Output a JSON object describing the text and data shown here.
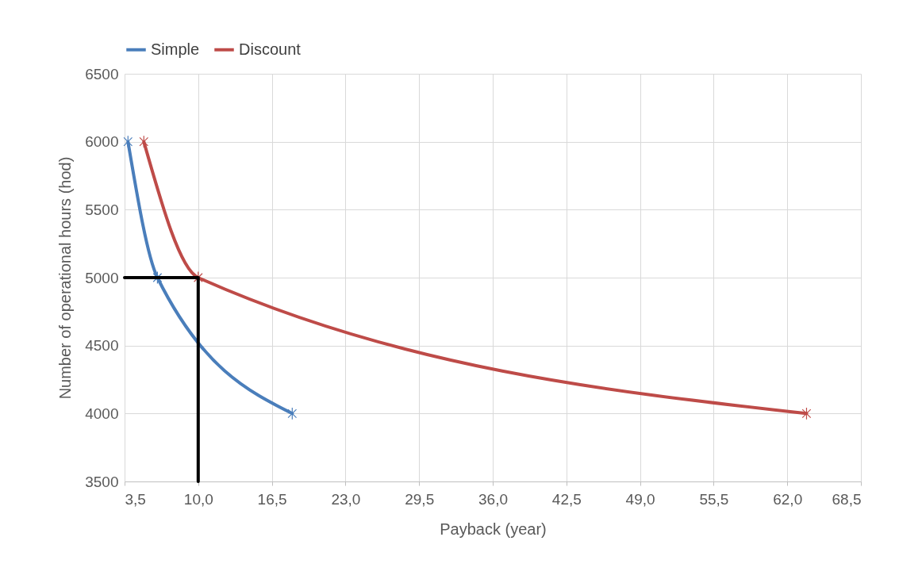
{
  "chart_data": {
    "type": "line",
    "xlabel": "Payback (year)",
    "ylabel": "Number of operational hours (hod)",
    "series": [
      {
        "name": "Simple",
        "color": "#4a7ebb",
        "x": [
          3.8,
          6.4,
          18.3
        ],
        "values": [
          6000,
          5000,
          4000
        ]
      },
      {
        "name": "Discount",
        "color": "#be4b48",
        "x": [
          5.2,
          10.0,
          63.7
        ],
        "values": [
          6000,
          5000,
          4000
        ]
      },
      {
        "type": "line",
        "color": "#000000",
        "marker": "none",
        "x": [
          3.5,
          10.0,
          10.0
        ],
        "values": [
          5000,
          5000,
          3500
        ]
      }
    ],
    "xlim": [
      3.5,
      68.5
    ],
    "ylim": [
      3500,
      6500
    ],
    "xticks": [
      {
        "value": 3.5,
        "label": "3,5"
      },
      {
        "value": 10,
        "label": "10,0"
      },
      {
        "value": 16.5,
        "label": "16,5"
      },
      {
        "value": 23,
        "label": "23,0"
      },
      {
        "value": 29.5,
        "label": "29,5"
      },
      {
        "value": 36,
        "label": "36,0"
      },
      {
        "value": 42.5,
        "label": "42,5"
      },
      {
        "value": 49,
        "label": "49,0"
      },
      {
        "value": 55.5,
        "label": "55,5"
      },
      {
        "value": 62,
        "label": "62,0"
      },
      {
        "value": 68.5,
        "label": "68,5"
      }
    ],
    "yticks": [
      3500,
      4000,
      4500,
      5000,
      5500,
      6000,
      6500
    ],
    "grid": true,
    "legend": "top",
    "marker": "cross",
    "line_style": "solid"
  }
}
